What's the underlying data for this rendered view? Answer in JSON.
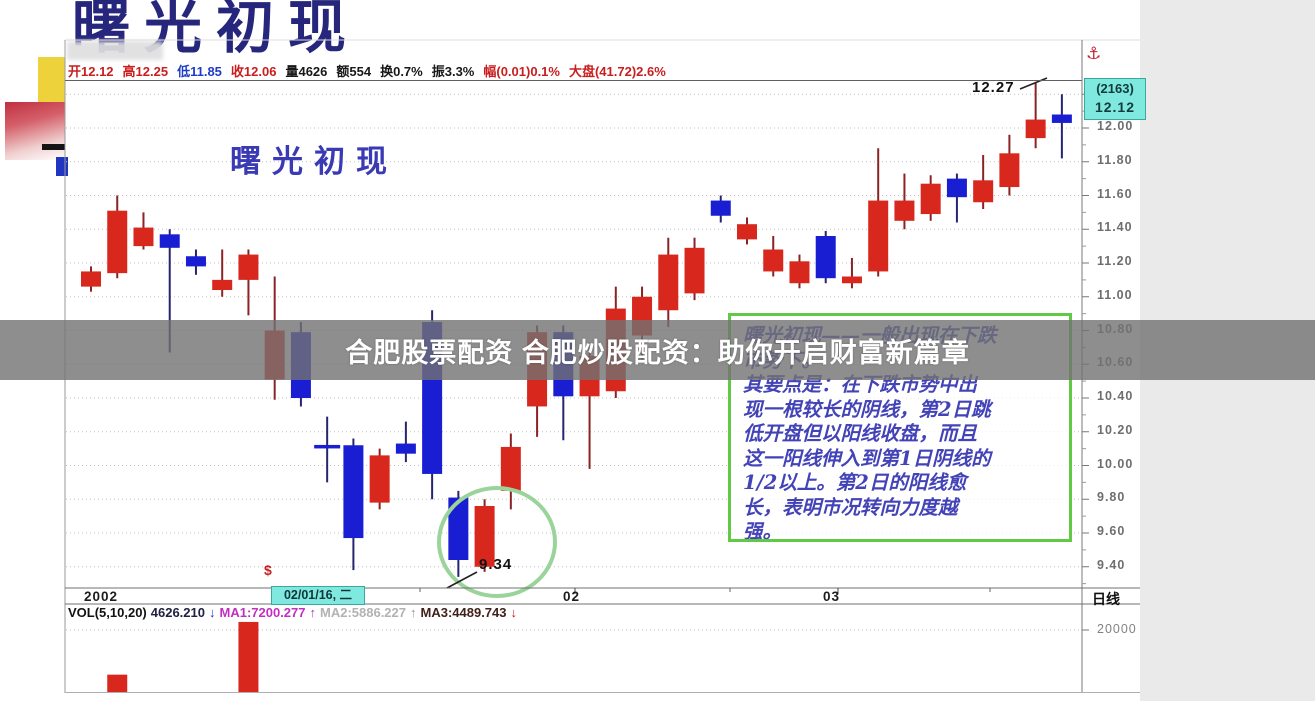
{
  "page": {
    "top_title": "曙光初现",
    "chart_title": "曙光初现",
    "banner_text": "合肥股票配资 合肥炒股配资：助你开启财富新篇章"
  },
  "info_bar": {
    "segments": [
      {
        "text": "开12.12",
        "color": "#c81e1e"
      },
      {
        "text": "高12.25",
        "color": "#c81e1e"
      },
      {
        "text": "低11.85",
        "color": "#1e3cc8"
      },
      {
        "text": "收12.06",
        "color": "#c81e1e"
      },
      {
        "text": "量4626",
        "color": "#181818"
      },
      {
        "text": "额554",
        "color": "#181818"
      },
      {
        "text": "换0.7%",
        "color": "#181818"
      },
      {
        "text": "振3.3%",
        "color": "#181818"
      },
      {
        "text": "幅(0.01)0.1%",
        "color": "#c81e1e"
      },
      {
        "text": "大盘(41.72)2.6%",
        "color": "#c81e1e"
      }
    ]
  },
  "right_axis": {
    "anchor_icon": "⚓",
    "session_box": {
      "line1": "(2163)",
      "line2": "12.12"
    },
    "labels": [
      "12.00",
      "11.80",
      "11.60",
      "11.40",
      "11.20",
      "11.00",
      "10.80",
      "10.60",
      "10.40",
      "10.20",
      "10.00",
      "9.80",
      "9.60",
      "9.40"
    ],
    "period_label": "日线",
    "volume_label": "20000"
  },
  "date_axis": {
    "year": "2002",
    "marker": "02/01/16, 二",
    "month1": "02",
    "month2": "03",
    "dollar_icon": "$"
  },
  "volume_text": {
    "segments": [
      {
        "text": "VOL(5,10,20)",
        "color": "#111111"
      },
      {
        "text": "4626.210",
        "color": "#202040"
      },
      {
        "text": "↓",
        "color": "#2030cc"
      },
      {
        "text": "MA1:7200.277",
        "color": "#c030c0"
      },
      {
        "text": "↑",
        "color": "#a040c0"
      },
      {
        "text": "MA2:5886.227",
        "color": "#b2b2b2"
      },
      {
        "text": "↑",
        "color": "#949494"
      },
      {
        "text": "MA3:4489.743",
        "color": "#40201a"
      },
      {
        "text": "↓",
        "color": "#c02020"
      }
    ]
  },
  "note_box": {
    "lines": [
      "曙光初现——一般出现在下跌",
      "市势下。",
      "其要点是：在下跌市势中出",
      "现一根较长的阴线，第2日跳",
      "低开盘但以阳线收盘，而且",
      "这一阳线伸入到第1日阴线的",
      "1/2以上。第2日的阳线愈",
      "长，表明市况转向力度越",
      "强。"
    ]
  },
  "annotations": {
    "high_label": "12.27",
    "low_label": "9.34"
  },
  "colors": {
    "up": "#d8281e",
    "down": "#1a1ed2",
    "up_wick": "#8a2424",
    "down_wick": "#252570",
    "banner_bg": "rgba(114,114,114,0.8)",
    "note_border": "#62c944",
    "circle": "#9ad49a",
    "highlight_bg": "#7fe8df",
    "grid": "#c2c2c2"
  },
  "chart_data": {
    "type": "candlestick",
    "title": "曙光初现",
    "period": "日线",
    "ylim": [
      9.3,
      12.3
    ],
    "y_tick_step": 0.2,
    "y_ticks": [
      12.2,
      12.0,
      11.8,
      11.6,
      11.4,
      11.2,
      11.0,
      10.8,
      10.6,
      10.4,
      10.2,
      10.0,
      9.8,
      9.6,
      9.4
    ],
    "grid": true,
    "candles": [
      {
        "o": 11.06,
        "h": 11.18,
        "l": 11.03,
        "c": 11.15,
        "t": "R"
      },
      {
        "o": 11.14,
        "h": 11.6,
        "l": 11.11,
        "c": 11.51,
        "t": "R"
      },
      {
        "o": 11.3,
        "h": 11.5,
        "l": 11.28,
        "c": 11.41,
        "t": "R"
      },
      {
        "o": 11.37,
        "h": 11.4,
        "l": 10.67,
        "c": 11.29,
        "t": "B"
      },
      {
        "o": 11.24,
        "h": 11.28,
        "l": 11.13,
        "c": 11.18,
        "t": "B"
      },
      {
        "o": 11.04,
        "h": 11.28,
        "l": 11.0,
        "c": 11.1,
        "t": "R"
      },
      {
        "o": 11.1,
        "h": 11.28,
        "l": 10.89,
        "c": 11.25,
        "t": "R"
      },
      {
        "o": 10.51,
        "h": 11.12,
        "l": 10.39,
        "c": 10.8,
        "t": "R"
      },
      {
        "o": 10.79,
        "h": 10.85,
        "l": 10.35,
        "c": 10.4,
        "t": "B"
      },
      {
        "o": 10.14,
        "h": 10.29,
        "l": 9.9,
        "c": 10.11,
        "t": "B",
        "doji": true
      },
      {
        "o": 10.12,
        "h": 10.16,
        "l": 9.38,
        "c": 9.57,
        "t": "B"
      },
      {
        "o": 9.78,
        "h": 10.1,
        "l": 9.74,
        "c": 10.06,
        "t": "R"
      },
      {
        "o": 10.13,
        "h": 10.26,
        "l": 10.02,
        "c": 10.07,
        "t": "B"
      },
      {
        "o": 10.85,
        "h": 10.92,
        "l": 9.8,
        "c": 9.95,
        "t": "B"
      },
      {
        "o": 9.81,
        "h": 9.85,
        "l": 9.34,
        "c": 9.44,
        "t": "B"
      },
      {
        "o": 9.4,
        "h": 9.8,
        "l": 9.37,
        "c": 9.76,
        "t": "R"
      },
      {
        "o": 9.85,
        "h": 10.19,
        "l": 9.74,
        "c": 10.11,
        "t": "R"
      },
      {
        "o": 10.35,
        "h": 10.83,
        "l": 10.17,
        "c": 10.79,
        "t": "R"
      },
      {
        "o": 10.79,
        "h": 10.83,
        "l": 10.15,
        "c": 10.41,
        "t": "B"
      },
      {
        "o": 10.41,
        "h": 10.7,
        "l": 9.98,
        "c": 10.65,
        "t": "R"
      },
      {
        "o": 10.44,
        "h": 11.06,
        "l": 10.4,
        "c": 10.93,
        "t": "R"
      },
      {
        "o": 10.77,
        "h": 11.06,
        "l": 10.63,
        "c": 11.0,
        "t": "R"
      },
      {
        "o": 10.92,
        "h": 11.35,
        "l": 10.82,
        "c": 11.25,
        "t": "R"
      },
      {
        "o": 11.02,
        "h": 11.35,
        "l": 10.98,
        "c": 11.29,
        "t": "R"
      },
      {
        "o": 11.57,
        "h": 11.6,
        "l": 11.44,
        "c": 11.48,
        "t": "B"
      },
      {
        "o": 11.34,
        "h": 11.47,
        "l": 11.31,
        "c": 11.43,
        "t": "R"
      },
      {
        "o": 11.15,
        "h": 11.36,
        "l": 11.12,
        "c": 11.28,
        "t": "R"
      },
      {
        "o": 11.08,
        "h": 11.25,
        "l": 11.05,
        "c": 11.21,
        "t": "R"
      },
      {
        "o": 11.36,
        "h": 11.39,
        "l": 11.08,
        "c": 11.11,
        "t": "B"
      },
      {
        "o": 11.08,
        "h": 11.23,
        "l": 11.05,
        "c": 11.12,
        "t": "R"
      },
      {
        "o": 11.15,
        "h": 11.88,
        "l": 11.12,
        "c": 11.57,
        "t": "R"
      },
      {
        "o": 11.45,
        "h": 11.73,
        "l": 11.4,
        "c": 11.57,
        "t": "R"
      },
      {
        "o": 11.49,
        "h": 11.72,
        "l": 11.45,
        "c": 11.67,
        "t": "R"
      },
      {
        "o": 11.7,
        "h": 11.73,
        "l": 11.44,
        "c": 11.59,
        "t": "B"
      },
      {
        "o": 11.56,
        "h": 11.84,
        "l": 11.52,
        "c": 11.69,
        "t": "R"
      },
      {
        "o": 11.65,
        "h": 11.96,
        "l": 11.6,
        "c": 11.85,
        "t": "R"
      },
      {
        "o": 11.94,
        "h": 12.27,
        "l": 11.88,
        "c": 12.05,
        "t": "R"
      },
      {
        "o": 12.08,
        "h": 12.2,
        "l": 11.82,
        "c": 12.03,
        "t": "B"
      }
    ],
    "high_annotation": {
      "index": 36,
      "label": "12.27"
    },
    "low_annotation": {
      "index": 14,
      "label": "9.34"
    },
    "pattern_circle_indices": [
      14,
      15
    ],
    "volume": {
      "gridline_value": 20000,
      "bars": [
        {
          "index": 1,
          "value": 5600
        },
        {
          "index": 6,
          "value": 22600
        }
      ]
    }
  }
}
